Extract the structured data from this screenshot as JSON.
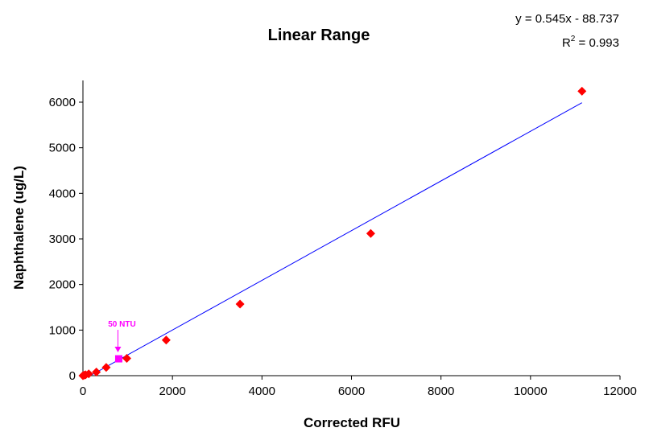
{
  "chart_data": {
    "type": "scatter",
    "title": "Linear Range",
    "xlabel": "Corrected RFU",
    "ylabel": "Naphthalene (ug/L)",
    "xlim": [
      0,
      12000
    ],
    "ylim": [
      0,
      6000
    ],
    "x_ticks": [
      "0",
      "2000",
      "4000",
      "6000",
      "8000",
      "10000",
      "12000"
    ],
    "y_ticks": [
      "0",
      "1000",
      "2000",
      "3000",
      "4000",
      "5000",
      "6000"
    ],
    "grid": false,
    "legend": "none",
    "series": [
      {
        "color": "#ff0000",
        "marker": "diamond",
        "points": [
          {
            "x": 0,
            "y": 0
          },
          {
            "x": 30,
            "y": 10
          },
          {
            "x": 60,
            "y": 20
          },
          {
            "x": 130,
            "y": 40
          },
          {
            "x": 300,
            "y": 80
          },
          {
            "x": 520,
            "y": 180
          },
          {
            "x": 980,
            "y": 380
          },
          {
            "x": 1860,
            "y": 780
          },
          {
            "x": 3510,
            "y": 1570
          },
          {
            "x": 6430,
            "y": 3120
          },
          {
            "x": 11150,
            "y": 6240
          }
        ]
      },
      {
        "color": "#ff00ff",
        "marker": "square",
        "points": [
          {
            "x": 800,
            "y": 370
          }
        ]
      }
    ],
    "trendline": {
      "color": "#0000ff",
      "slope": 0.545,
      "intercept": -88.737,
      "x_range": [
        0,
        11150
      ],
      "equation": "y = 0.545x - 88.737",
      "r2_label": "R",
      "r2_sup": "2",
      "r2_value": " = 0.993"
    },
    "annotation": {
      "text": "50 NTU",
      "color": "#ff00ff",
      "x": 800,
      "y": 370
    }
  }
}
